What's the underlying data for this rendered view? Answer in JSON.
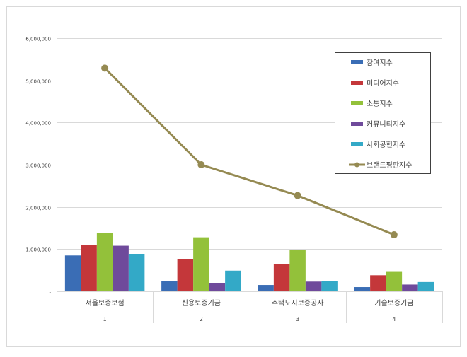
{
  "chart_data": {
    "type": "bar",
    "categories": [
      "서울보증보험",
      "신용보증기금",
      "주택도시보증공사",
      "기술보증기금"
    ],
    "category_index": [
      "1",
      "2",
      "3",
      "4"
    ],
    "y_ticks": [
      "-",
      "1,000,000",
      "2,000,000",
      "3,000,000",
      "4,000,000",
      "5,000,000",
      "6,000,000"
    ],
    "ylim": [
      0,
      6000000
    ],
    "grid": true,
    "legend_position": "top-right",
    "series": [
      {
        "name": "참여지수",
        "type": "bar",
        "color": "#3a6db5",
        "values": [
          850000,
          250000,
          150000,
          100000
        ]
      },
      {
        "name": "미디어지수",
        "type": "bar",
        "color": "#c4373a",
        "values": [
          1100000,
          770000,
          650000,
          380000
        ]
      },
      {
        "name": "소통지수",
        "type": "bar",
        "color": "#93c13a",
        "values": [
          1380000,
          1280000,
          980000,
          460000
        ]
      },
      {
        "name": "커뮤니티지수",
        "type": "bar",
        "color": "#6f4a9b",
        "values": [
          1080000,
          200000,
          230000,
          160000
        ]
      },
      {
        "name": "사회공헌지수",
        "type": "bar",
        "color": "#33a9c7",
        "values": [
          880000,
          490000,
          250000,
          220000
        ]
      },
      {
        "name": "브랜드평판지수",
        "type": "line",
        "color": "#958a52",
        "values": [
          5290000,
          3000000,
          2270000,
          1340000
        ]
      }
    ]
  }
}
